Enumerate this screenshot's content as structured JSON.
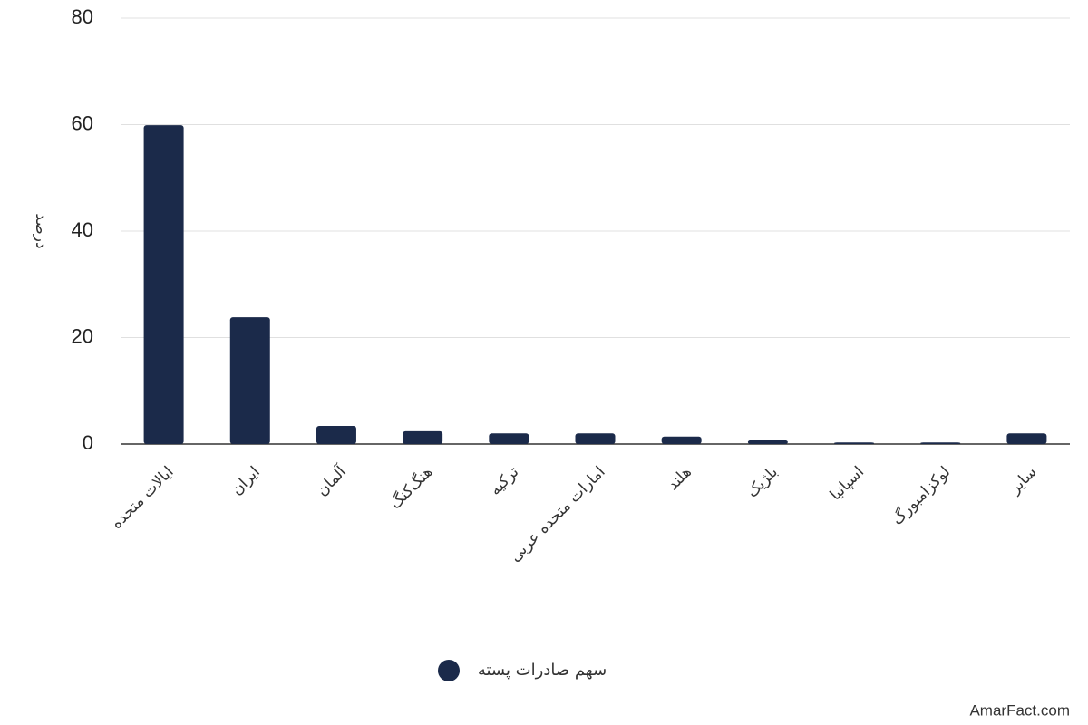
{
  "chart_data": {
    "type": "bar",
    "y_label": "درصد",
    "categories": [
      "ایالات متحده",
      "ایران",
      "آلمان",
      "هنگ‌کنگ",
      "ترکیه",
      "امارات متحده عربی",
      "هلند",
      "بلژیک",
      "اسپانیا",
      "لوکزامبورگ",
      "سایر"
    ],
    "series": [
      {
        "name": "سهم صادرات پسته",
        "color": "#1b2a4a",
        "values": [
          59.9,
          23.8,
          3.4,
          2.4,
          2.0,
          2.0,
          1.4,
          0.7,
          0.3,
          0.3,
          2.0
        ]
      }
    ],
    "ylim": [
      0,
      80
    ],
    "yticks": [
      0,
      20,
      40,
      60,
      80
    ],
    "grid": true,
    "watermark": "AmarFact.com"
  }
}
